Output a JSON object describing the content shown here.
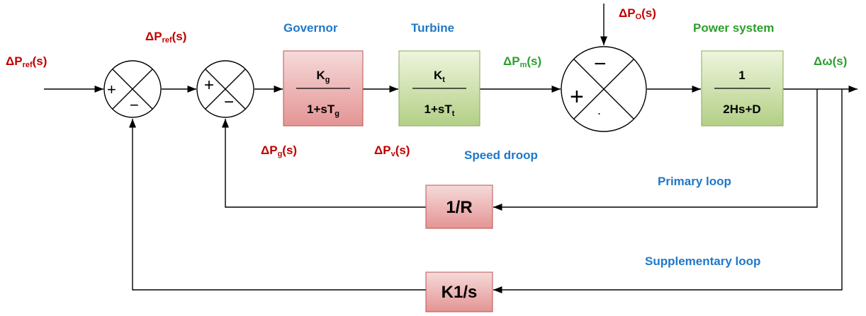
{
  "signals": {
    "reference_input": {
      "base": "ΔP",
      "sub": "ref",
      "tail": "(s)"
    },
    "reference_after": {
      "base": "ΔP",
      "sub": "ref",
      "tail": "(s)"
    },
    "disturbance": {
      "base": "ΔP",
      "sub": "O",
      "tail": "(s)"
    },
    "mechanical": {
      "base": "ΔP",
      "sub": "m",
      "tail": "(s)"
    },
    "governor_out": {
      "base": "ΔP",
      "sub": "g",
      "tail": "(s)"
    },
    "valve": {
      "base": "ΔP",
      "sub": "v",
      "tail": "(s)"
    },
    "frequency": "Δω(s)"
  },
  "labels": {
    "governor": "Governor",
    "turbine": "Turbine",
    "power_system": "Power system",
    "speed_droop": "Speed droop",
    "primary_loop": "Primary loop",
    "supplementary_loop": "Supplementary loop"
  },
  "blocks": {
    "governor": {
      "num_base": "K",
      "num_sub": "g",
      "den_base": "1+sT",
      "den_sub": "g"
    },
    "turbine": {
      "num_base": "K",
      "num_sub": "t",
      "den_base": "1+sT",
      "den_sub": "t"
    },
    "power_system": {
      "num": "1",
      "den": "2Hs+D"
    },
    "droop": "1/R",
    "integral": "K1/s"
  },
  "junctions": [
    {
      "signs": [
        "+",
        "−"
      ]
    },
    {
      "signs": [
        "+",
        "−"
      ]
    },
    {
      "signs": [
        "−",
        "+",
        "."
      ]
    }
  ]
}
